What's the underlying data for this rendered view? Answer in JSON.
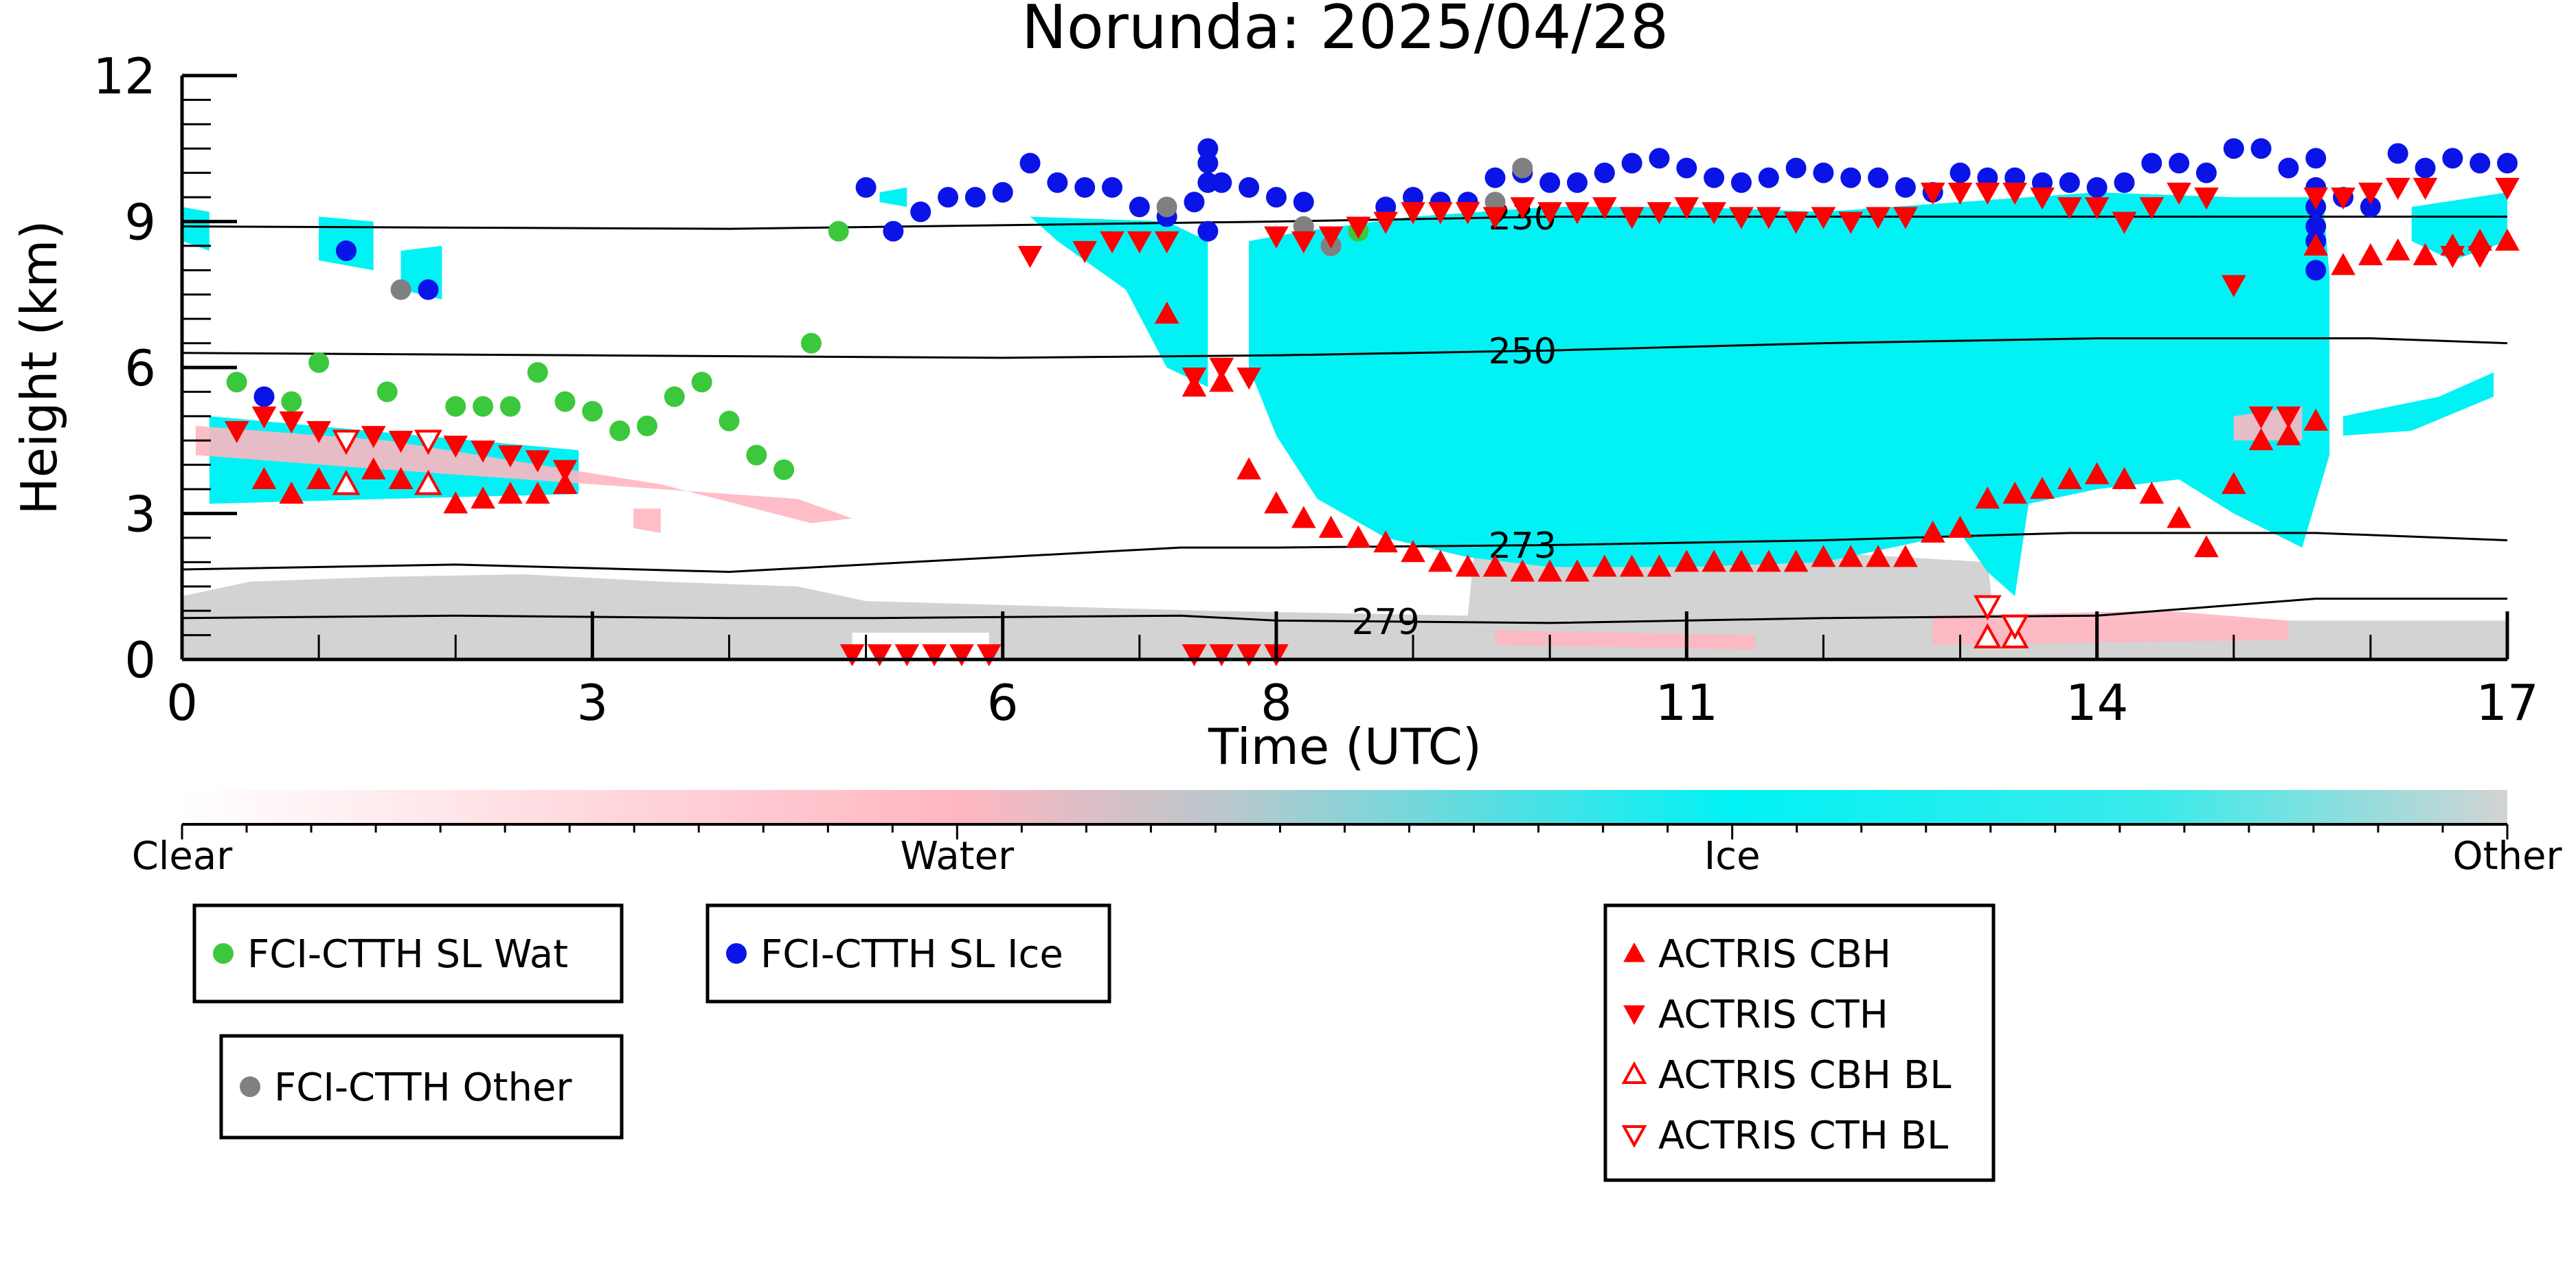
{
  "colors": {
    "clear": "#ffffff",
    "water": "#ffb6c1",
    "ice": "#00f2f5",
    "other": "#d3d3d3",
    "wat_marker": "#3cc83c",
    "ice_marker": "#0a14e6",
    "other_marker": "#808080",
    "actris": "#ff0000"
  },
  "chart_data": {
    "type": "scatter",
    "title": "Norunda: 2025/04/28",
    "xlabel": "Time (UTC)",
    "ylabel": "Height (km)",
    "xlim": [
      0,
      17
    ],
    "ylim": [
      0,
      12
    ],
    "xticks": [
      0,
      3,
      6,
      8,
      11,
      14,
      17
    ],
    "yticks": [
      0,
      3,
      6,
      9,
      12
    ],
    "colorbar": {
      "labels": [
        "Clear",
        "Water",
        "Ice",
        "Other"
      ]
    },
    "isotherms": [
      {
        "label": "230",
        "x": [
          0,
          4,
          8,
          10,
          13,
          17
        ],
        "y": [
          8.9,
          8.85,
          9.0,
          9.1,
          9.1,
          9.1
        ]
      },
      {
        "label": "250",
        "x": [
          0,
          3,
          6,
          8,
          10,
          12,
          14,
          16,
          17
        ],
        "y": [
          6.3,
          6.25,
          6.2,
          6.25,
          6.35,
          6.5,
          6.6,
          6.6,
          6.5
        ]
      },
      {
        "label": "273",
        "x": [
          0,
          2,
          4,
          7.3,
          8,
          10,
          12,
          13.8,
          15.6,
          17
        ],
        "y": [
          1.85,
          1.95,
          1.8,
          2.3,
          2.3,
          2.35,
          2.45,
          2.6,
          2.6,
          2.45
        ]
      },
      {
        "label": "279",
        "x": [
          0,
          2,
          4,
          5,
          7.3,
          8,
          10,
          12,
          14,
          15.6,
          17
        ],
        "y": [
          0.85,
          0.9,
          0.85,
          0.85,
          0.9,
          0.8,
          0.75,
          0.85,
          0.9,
          1.25,
          1.25
        ]
      }
    ],
    "series": [
      {
        "name": "FCI-CTTH SL Wat",
        "marker": "circle",
        "x": [
          0.4,
          0.8,
          1.0,
          1.5,
          2.0,
          2.2,
          2.4,
          2.6,
          2.8,
          3.0,
          3.2,
          3.4,
          3.6,
          3.8,
          4.0,
          4.2,
          4.4,
          4.6,
          4.8,
          8.6
        ],
        "y": [
          5.7,
          5.3,
          6.1,
          5.5,
          5.2,
          5.2,
          5.2,
          5.9,
          5.3,
          5.1,
          4.7,
          4.8,
          5.4,
          5.7,
          4.9,
          4.2,
          3.9,
          6.5,
          8.8,
          8.8
        ]
      },
      {
        "name": "FCI-CTTH SL Ice",
        "marker": "circle",
        "x": [
          0.6,
          1.2,
          1.8,
          5.0,
          5.2,
          5.4,
          5.6,
          5.8,
          6.0,
          6.2,
          6.4,
          6.6,
          6.8,
          7.0,
          7.2,
          7.4,
          7.5,
          7.5,
          7.5,
          7.5,
          7.6,
          7.8,
          8.0,
          8.2,
          8.8,
          9.0,
          9.2,
          9.4,
          9.6,
          9.8,
          10.0,
          10.2,
          10.4,
          10.6,
          10.8,
          11.0,
          11.2,
          11.4,
          11.6,
          11.8,
          12.0,
          12.2,
          12.4,
          12.6,
          12.8,
          13.0,
          13.2,
          13.4,
          13.6,
          13.8,
          14.0,
          14.2,
          14.4,
          14.6,
          14.8,
          15.0,
          15.2,
          15.4,
          15.6,
          15.6,
          15.6,
          15.6,
          15.6,
          15.6,
          15.8,
          16.0,
          16.2,
          16.4,
          16.6,
          16.8,
          17.0
        ],
        "y": [
          5.4,
          8.4,
          7.6,
          9.7,
          8.8,
          9.2,
          9.5,
          9.5,
          9.6,
          10.2,
          9.8,
          9.7,
          9.7,
          9.3,
          9.1,
          9.4,
          9.8,
          10.2,
          10.5,
          8.8,
          9.8,
          9.7,
          9.5,
          9.4,
          9.3,
          9.5,
          9.4,
          9.4,
          9.9,
          10.0,
          9.8,
          9.8,
          10.0,
          10.2,
          10.3,
          10.1,
          9.9,
          9.8,
          9.9,
          10.1,
          10.0,
          9.9,
          9.9,
          9.7,
          9.6,
          10.0,
          9.9,
          9.9,
          9.8,
          9.8,
          9.7,
          9.8,
          10.2,
          10.2,
          10.0,
          10.5,
          10.5,
          10.1,
          10.3,
          9.7,
          9.3,
          8.9,
          8.6,
          8.0,
          9.5,
          9.3,
          10.4,
          10.1,
          10.3,
          10.2,
          10.2
        ]
      },
      {
        "name": "FCI-CTTH Other",
        "marker": "circle",
        "x": [
          1.6,
          7.2,
          8.2,
          8.4,
          9.6,
          9.8
        ],
        "y": [
          7.6,
          9.3,
          8.9,
          8.5,
          9.4,
          10.1
        ]
      },
      {
        "name": "ACTRIS CBH",
        "marker": "triangle-up",
        "x": [
          0.6,
          0.8,
          1.0,
          1.2,
          1.4,
          1.6,
          1.8,
          2.0,
          2.2,
          2.4,
          2.6,
          2.8,
          7.2,
          7.4,
          7.6,
          7.8,
          8.0,
          8.2,
          8.4,
          8.6,
          8.8,
          9.0,
          9.2,
          9.4,
          9.6,
          9.8,
          10.0,
          10.2,
          10.4,
          10.6,
          10.8,
          11.0,
          11.2,
          11.4,
          11.6,
          11.8,
          12.0,
          12.2,
          12.4,
          12.6,
          12.8,
          13.0,
          13.2,
          13.4,
          13.6,
          13.8,
          14.0,
          14.2,
          14.4,
          14.6,
          14.8,
          15.0,
          15.2,
          15.4,
          15.6,
          15.6,
          15.8,
          16.0,
          16.2,
          16.4,
          16.6,
          16.8,
          17.0
        ],
        "y": [
          3.7,
          3.4,
          3.7,
          3.6,
          3.9,
          3.7,
          3.6,
          3.2,
          3.3,
          3.4,
          3.4,
          3.6,
          7.1,
          5.6,
          5.7,
          3.9,
          3.2,
          2.9,
          2.7,
          2.5,
          2.4,
          2.2,
          2.0,
          1.9,
          1.9,
          1.8,
          1.8,
          1.8,
          1.9,
          1.9,
          1.9,
          2.0,
          2.0,
          2.0,
          2.0,
          2.0,
          2.1,
          2.1,
          2.1,
          2.1,
          2.6,
          2.7,
          3.3,
          3.4,
          3.5,
          3.7,
          3.8,
          3.7,
          3.4,
          2.9,
          2.3,
          3.6,
          4.5,
          4.6,
          4.9,
          8.5,
          8.1,
          8.3,
          8.4,
          8.3,
          8.5,
          8.6,
          8.6
        ],
        "y_note": ""
      },
      {
        "name": "ACTRIS CTH",
        "marker": "triangle-down",
        "x": [
          0.4,
          0.6,
          0.8,
          1.0,
          1.4,
          1.6,
          1.8,
          2.0,
          2.2,
          2.4,
          2.6,
          2.8,
          6.2,
          6.6,
          6.8,
          7.0,
          7.2,
          7.4,
          7.6,
          7.8,
          8.0,
          8.2,
          8.4,
          8.6,
          8.8,
          9.0,
          9.2,
          9.4,
          9.6,
          9.8,
          10.0,
          10.2,
          10.4,
          10.6,
          10.8,
          11.0,
          11.2,
          11.4,
          11.6,
          11.8,
          12.0,
          12.2,
          12.4,
          12.6,
          12.8,
          13.0,
          13.2,
          13.4,
          13.6,
          13.8,
          14.0,
          14.2,
          14.4,
          14.6,
          14.8,
          15.0,
          15.2,
          15.4,
          15.6,
          15.8,
          16.0,
          16.2,
          16.4,
          16.6,
          16.8,
          17.0
        ],
        "y": [
          4.7,
          5.0,
          4.9,
          4.7,
          4.6,
          4.5,
          4.5,
          4.4,
          4.3,
          4.2,
          4.1,
          3.9,
          8.3,
          8.4,
          8.6,
          8.6,
          8.6,
          5.8,
          6.0,
          5.8,
          8.7,
          8.6,
          8.7,
          8.9,
          9.0,
          9.2,
          9.2,
          9.2,
          9.1,
          9.3,
          9.2,
          9.2,
          9.3,
          9.1,
          9.2,
          9.3,
          9.2,
          9.1,
          9.1,
          9.0,
          9.1,
          9.0,
          9.1,
          9.1,
          9.6,
          9.6,
          9.6,
          9.6,
          9.5,
          9.3,
          9.3,
          9.0,
          9.3,
          9.6,
          9.5,
          7.7,
          5.0,
          5.0,
          9.5,
          9.5,
          9.6,
          9.7,
          9.7,
          8.3,
          8.3,
          9.7
        ],
        "y_note": ""
      },
      {
        "name": "ACTRIS CBH BL",
        "marker": "triangle-up-open",
        "x": [
          1.2,
          1.8,
          13.2,
          13.4
        ],
        "y": [
          3.6,
          3.6,
          0.45,
          0.45
        ]
      },
      {
        "name": "ACTRIS CTH BL",
        "marker": "triangle-down-open",
        "x": [
          1.2,
          1.8,
          13.2,
          13.4
        ],
        "y": [
          4.5,
          4.5,
          1.1,
          0.7
        ]
      },
      {
        "name": "ACTRIS low CTH",
        "marker": "triangle-down",
        "legend": false,
        "x": [
          4.9,
          5.1,
          5.3,
          5.5,
          5.7,
          5.9,
          7.4,
          7.6,
          7.8,
          8.0
        ],
        "y": [
          0.05,
          0.05,
          0.05,
          0.05,
          0.05,
          0.05,
          0.05,
          0.05,
          0.05,
          0.05
        ]
      }
    ],
    "legend": [
      {
        "label": "FCI-CTTH SL Wat",
        "marker": "circle",
        "color": "#3cc83c"
      },
      {
        "label": "FCI-CTTH SL Ice",
        "marker": "circle",
        "color": "#0a14e6"
      },
      {
        "label": "FCI-CTTH Other",
        "marker": "circle",
        "color": "#808080"
      },
      {
        "label": "ACTRIS CBH",
        "marker": "triangle-up",
        "color": "#ff0000"
      },
      {
        "label": "ACTRIS CTH",
        "marker": "triangle-down",
        "color": "#ff0000"
      },
      {
        "label": "ACTRIS CBH BL",
        "marker": "triangle-up-open",
        "color": "#ff0000"
      },
      {
        "label": "ACTRIS CTH BL",
        "marker": "triangle-down-open",
        "color": "#ff0000"
      }
    ]
  }
}
